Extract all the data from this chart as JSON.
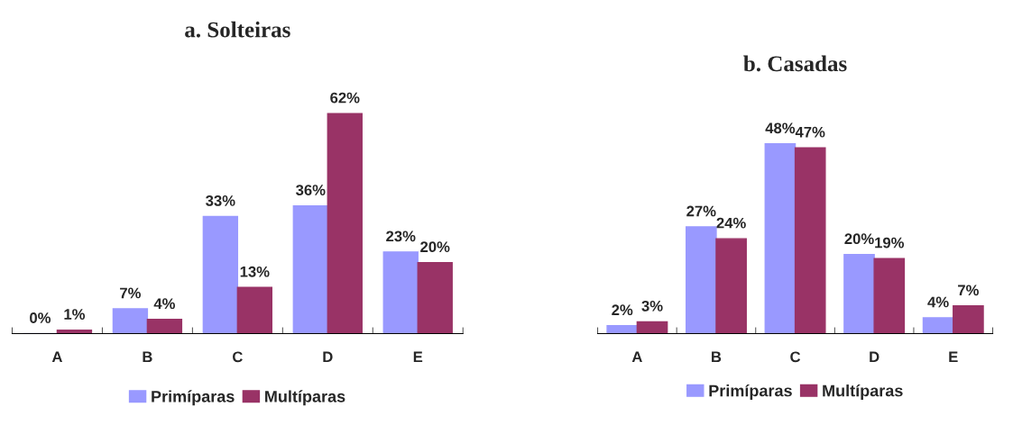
{
  "chart_data": [
    {
      "type": "bar",
      "title": "a. Solteiras",
      "categories": [
        "A",
        "B",
        "C",
        "D",
        "E"
      ],
      "legend": "bottom",
      "grid": false,
      "tick_labels": "x",
      "series": [
        {
          "name": "Primíparas",
          "color": "#9999ff",
          "values": [
            0,
            7,
            33,
            36,
            23
          ],
          "value_labels": [
            "0%",
            "7%",
            "33%",
            "36%",
            "23%"
          ]
        },
        {
          "name": "Multíparas",
          "color": "#993366",
          "values": [
            1,
            4,
            13,
            62,
            20
          ],
          "value_labels": [
            "1%",
            "4%",
            "13%",
            "62%",
            "20%"
          ]
        }
      ]
    },
    {
      "type": "bar",
      "title": "b. Casadas",
      "categories": [
        "A",
        "B",
        "C",
        "D",
        "E"
      ],
      "legend": "bottom",
      "grid": false,
      "tick_labels": "x",
      "series": [
        {
          "name": "Primíparas",
          "color": "#9999ff",
          "values": [
            2,
            27,
            48,
            20,
            4
          ],
          "value_labels": [
            "2%",
            "27%",
            "48%",
            "20%",
            "4%"
          ]
        },
        {
          "name": "Multíparas",
          "color": "#993366",
          "values": [
            3,
            24,
            47,
            19,
            7
          ],
          "value_labels": [
            "3%",
            "24%",
            "47%",
            "19%",
            "7%"
          ]
        }
      ]
    }
  ]
}
